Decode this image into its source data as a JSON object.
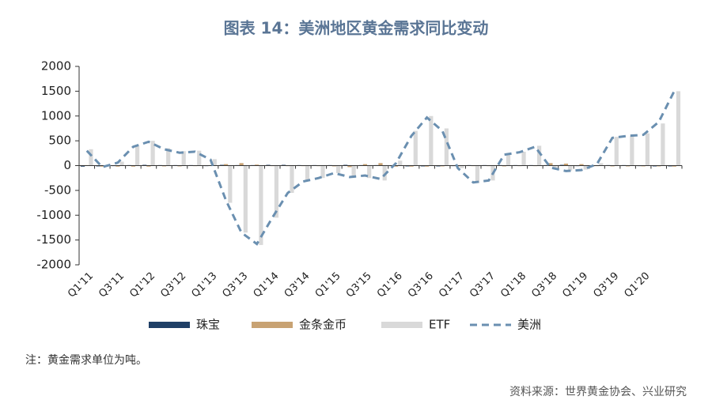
{
  "chart_data": {
    "type": "bar",
    "title": "图表 14：美洲地区黄金需求同比变动",
    "note": "注：黄金需求单位为吨。",
    "source": "资料来源：世界黄金协会、兴业研究",
    "categories": [
      "Q1'11",
      null,
      "Q3'11",
      null,
      "Q1'12",
      null,
      "Q3'12",
      null,
      "Q1'13",
      null,
      "Q3'13",
      null,
      "Q1'14",
      null,
      "Q3'14",
      null,
      "Q1'15",
      null,
      "Q3'15",
      null,
      "Q1'16",
      null,
      "Q3'16",
      null,
      "Q1'17",
      null,
      "Q3'17",
      null,
      "Q1'18",
      null,
      "Q3'18",
      null,
      "Q1'19",
      null,
      "Q3'19",
      null,
      "Q1'20",
      null,
      null
    ],
    "series": [
      {
        "name": "珠宝",
        "type": "bar",
        "color": "#1f3f66",
        "values": [
          -20,
          -15,
          -10,
          10,
          15,
          10,
          10,
          10,
          -10,
          15,
          10,
          10,
          15,
          15,
          10,
          10,
          10,
          15,
          10,
          10,
          -10,
          -15,
          -15,
          -15,
          -10,
          10,
          10,
          10,
          10,
          10,
          10,
          15,
          -10,
          -10,
          10,
          10,
          -10,
          -15,
          -15
        ]
      },
      {
        "name": "金条金币",
        "type": "bar",
        "color": "#c8a273",
        "values": [
          10,
          -20,
          -20,
          -20,
          -20,
          -15,
          -15,
          -10,
          10,
          30,
          50,
          20,
          -10,
          -10,
          -10,
          -10,
          -15,
          -30,
          30,
          50,
          -20,
          -20,
          -20,
          -15,
          -15,
          -10,
          -10,
          -15,
          -10,
          -10,
          50,
          40,
          30,
          -10,
          -15,
          -15,
          -15,
          -15,
          -20
        ]
      },
      {
        "name": "ETF",
        "type": "bar",
        "color": "#d9d9d9",
        "values": [
          330,
          -20,
          80,
          400,
          500,
          350,
          290,
          300,
          130,
          -750,
          -1350,
          -1600,
          -1050,
          -550,
          -300,
          -250,
          -150,
          -250,
          -250,
          -300,
          100,
          700,
          1000,
          750,
          -50,
          -350,
          -300,
          250,
          280,
          400,
          -50,
          -100,
          -80,
          50,
          580,
          600,
          650,
          850,
          1500
        ]
      },
      {
        "name": "美洲",
        "type": "line",
        "line_style": "dashed",
        "color": "#6a8fb0",
        "values": [
          300,
          -30,
          60,
          380,
          480,
          330,
          260,
          280,
          120,
          -700,
          -1350,
          -1580,
          -1050,
          -550,
          -320,
          -250,
          -150,
          -230,
          -200,
          -270,
          50,
          600,
          970,
          700,
          -50,
          -340,
          -300,
          220,
          270,
          380,
          -40,
          -110,
          -90,
          30,
          560,
          600,
          620,
          880,
          1500
        ]
      }
    ],
    "ylim": [
      -2000,
      2000
    ],
    "yticks": [
      -2000,
      -1500,
      -1000,
      -500,
      0,
      500,
      1000,
      1500,
      2000
    ],
    "grid": false
  }
}
